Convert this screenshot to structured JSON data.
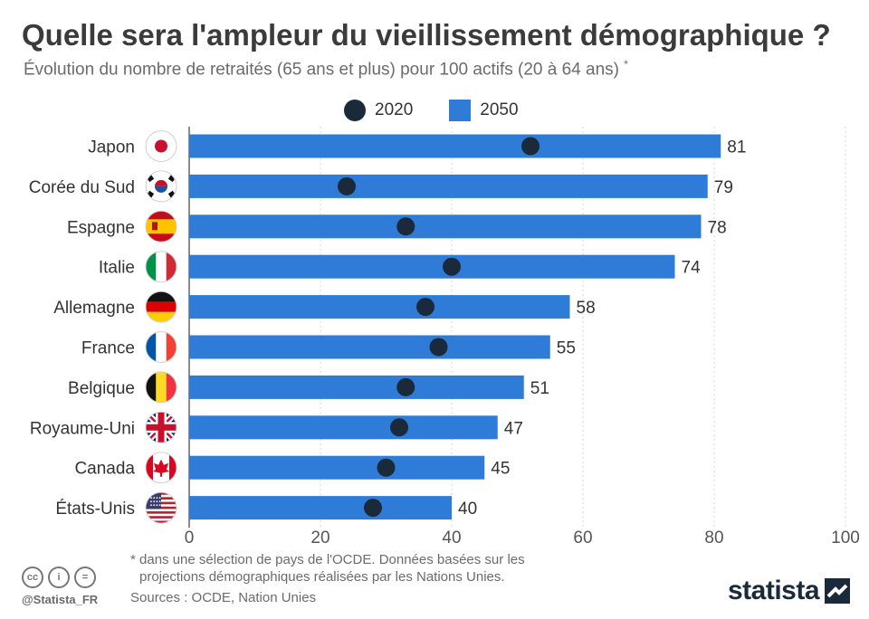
{
  "header": {
    "title": "Quelle sera l'ampleur du vieillissement démographique ?",
    "subtitle": "Évolution du nombre de retraités (65 ans et plus) pour 100 actifs (20 à 64 ans)",
    "subtitle_marker": "*"
  },
  "legend": {
    "item_2020": "2020",
    "item_2050": "2050"
  },
  "chart_data": {
    "type": "bar",
    "orientation": "horizontal",
    "title": "Quelle sera l'ampleur du vieillissement démographique ?",
    "categories": [
      "Japon",
      "Corée du Sud",
      "Espagne",
      "Italie",
      "Allemagne",
      "France",
      "Belgique",
      "Royaume-Uni",
      "Canada",
      "États-Unis"
    ],
    "series": [
      {
        "name": "2050",
        "kind": "bar",
        "color": "#2f7bd8",
        "values": [
          81,
          79,
          78,
          74,
          58,
          55,
          51,
          47,
          45,
          40
        ]
      },
      {
        "name": "2020",
        "kind": "dot",
        "color": "#1b2a3a",
        "values": [
          52,
          24,
          33,
          40,
          36,
          38,
          33,
          32,
          30,
          28
        ]
      }
    ],
    "xlim": [
      0,
      100
    ],
    "xticks": [
      0,
      20,
      40,
      60,
      80,
      100
    ],
    "grid": true,
    "legend_position": "top",
    "show_bar_labels": true
  },
  "flags": [
    "japan-flag-icon",
    "south-korea-flag-icon",
    "spain-flag-icon",
    "italy-flag-icon",
    "germany-flag-icon",
    "france-flag-icon",
    "belgium-flag-icon",
    "uk-flag-icon",
    "canada-flag-icon",
    "usa-flag-icon"
  ],
  "footer": {
    "footnote_line1": "* dans une sélection de pays de l'OCDE. Données basées sur les",
    "footnote_line2": "projections démographiques réalisées par les Nations Unies.",
    "sources": "Sources : OCDE, Nation Unies",
    "handle": "@Statista_FR",
    "brand": "statista",
    "cc_icons": [
      "cc",
      "by",
      "nd"
    ],
    "cc_symbols": [
      "cc",
      "i",
      "="
    ]
  }
}
